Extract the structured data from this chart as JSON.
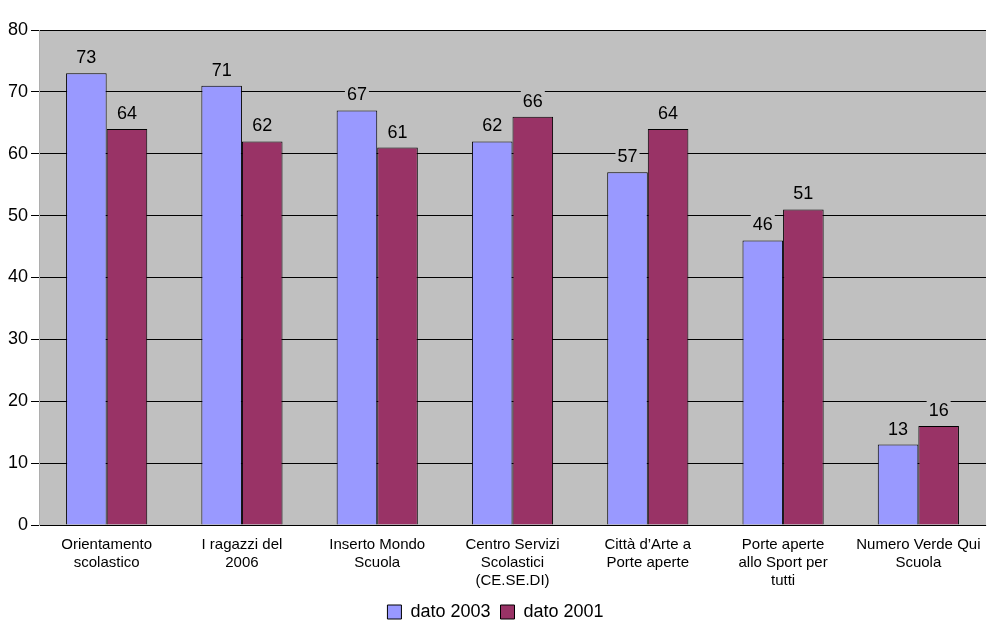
{
  "chart_data": {
    "type": "bar",
    "categories": [
      "Orientamento scolastico",
      "I ragazzi del 2006",
      "Inserto Mondo Scuola",
      "Centro Servizi Scolastici (CE.SE.DI)",
      "Città d’Arte a Porte aperte",
      "Porte aperte allo Sport per tutti",
      "Numero Verde Qui Scuola"
    ],
    "series": [
      {
        "name": "dato 2003",
        "color": "#9999ff",
        "values": [
          73,
          71,
          67,
          62,
          57,
          46,
          13
        ]
      },
      {
        "name": "dato 2001",
        "color": "#993366",
        "values": [
          64,
          62,
          61,
          66,
          64,
          51,
          16
        ]
      }
    ],
    "ylim": [
      0,
      80
    ],
    "yticks": [
      0,
      10,
      20,
      30,
      40,
      50,
      60,
      70,
      80
    ],
    "grid": "y",
    "legend": "bottom",
    "data_labels": true
  }
}
